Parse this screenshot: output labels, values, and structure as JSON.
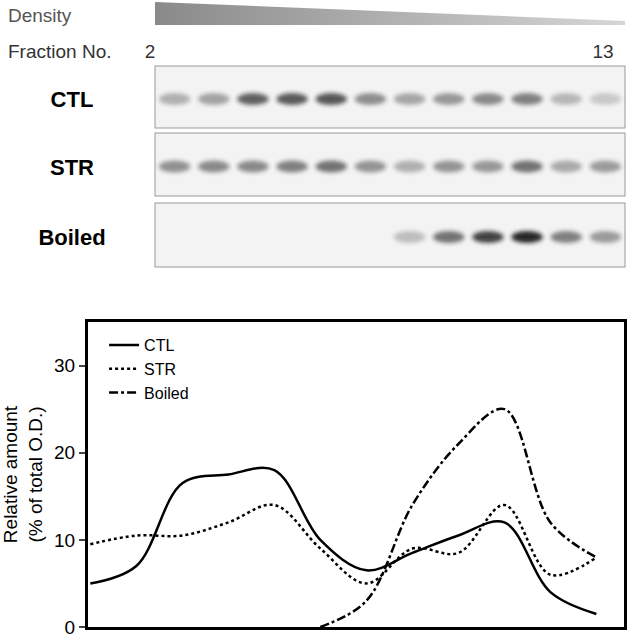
{
  "header": {
    "density": "Density",
    "fraction": "Fraction No.",
    "fraction_first": "2",
    "fraction_last": "13"
  },
  "chart_data": {
    "type": "line",
    "x": [
      2,
      3,
      4,
      5,
      6,
      7,
      8,
      9,
      10,
      11,
      12,
      13
    ],
    "xlim": [
      1.95,
      13.6
    ],
    "ylim": [
      0,
      35
    ],
    "yticks": [
      0,
      10,
      20,
      30
    ],
    "y_label": "Relative amount\n(% of total O.D.)",
    "tick_labels": "y",
    "legend": "upper left",
    "series": [
      {
        "name": "CTL",
        "color": "#000000",
        "line_style": "solid",
        "values": [
          5,
          7,
          16.5,
          17.5,
          18,
          10,
          6.5,
          8.5,
          10.5,
          12,
          4,
          1.5
        ]
      },
      {
        "name": "STR",
        "color": "#000000",
        "line_style": "dot",
        "values": [
          9.5,
          10.5,
          10.5,
          12,
          14,
          9,
          5,
          9,
          8.5,
          14,
          6,
          8
        ]
      },
      {
        "name": "Boiled",
        "color": "#000000",
        "line_style": "dashdot",
        "values": [
          null,
          null,
          null,
          null,
          null,
          0,
          3,
          14,
          21,
          25,
          12,
          8
        ]
      }
    ]
  }
}
